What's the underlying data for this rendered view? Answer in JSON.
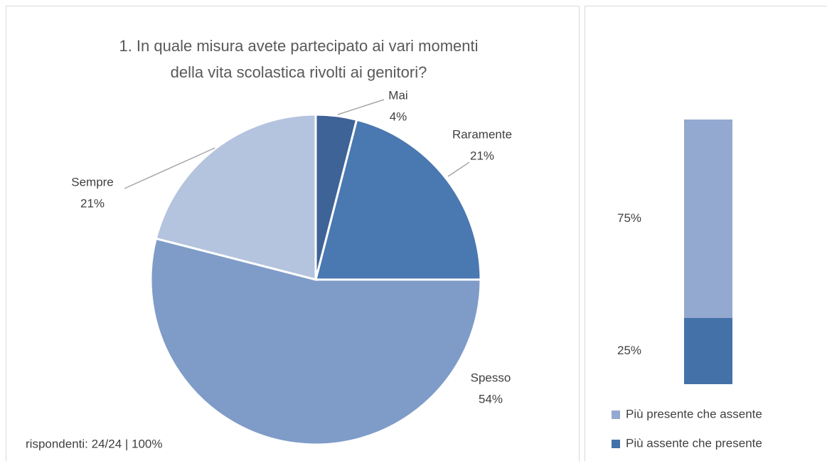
{
  "chart_data": [
    {
      "type": "pie",
      "title": [
        "1. In quale misura avete partecipato ai vari momenti",
        "della vita scolastica rivolti ai genitori?"
      ],
      "categories": [
        "Mai",
        "Raramente",
        "Spesso",
        "Sempre"
      ],
      "values": [
        4,
        21,
        54,
        21
      ],
      "value_labels": [
        "4%",
        "21%",
        "54%",
        "21%"
      ],
      "colors": [
        "#3e6397",
        "#4a78b0",
        "#7f9cc8",
        "#b4c3de"
      ],
      "annotation": "rispondenti: 24/24 | 100%"
    },
    {
      "type": "bar",
      "stacked": true,
      "categories": [
        null
      ],
      "series": [
        {
          "name": "Più assente che presente",
          "color": "#4472a8",
          "values": [
            25
          ],
          "value_labels": [
            "25%"
          ]
        },
        {
          "name": "Più presente che assente",
          "color": "#94a9d0",
          "values": [
            75
          ],
          "value_labels": [
            "75%"
          ]
        }
      ],
      "ylim": [
        0,
        100
      ]
    }
  ]
}
